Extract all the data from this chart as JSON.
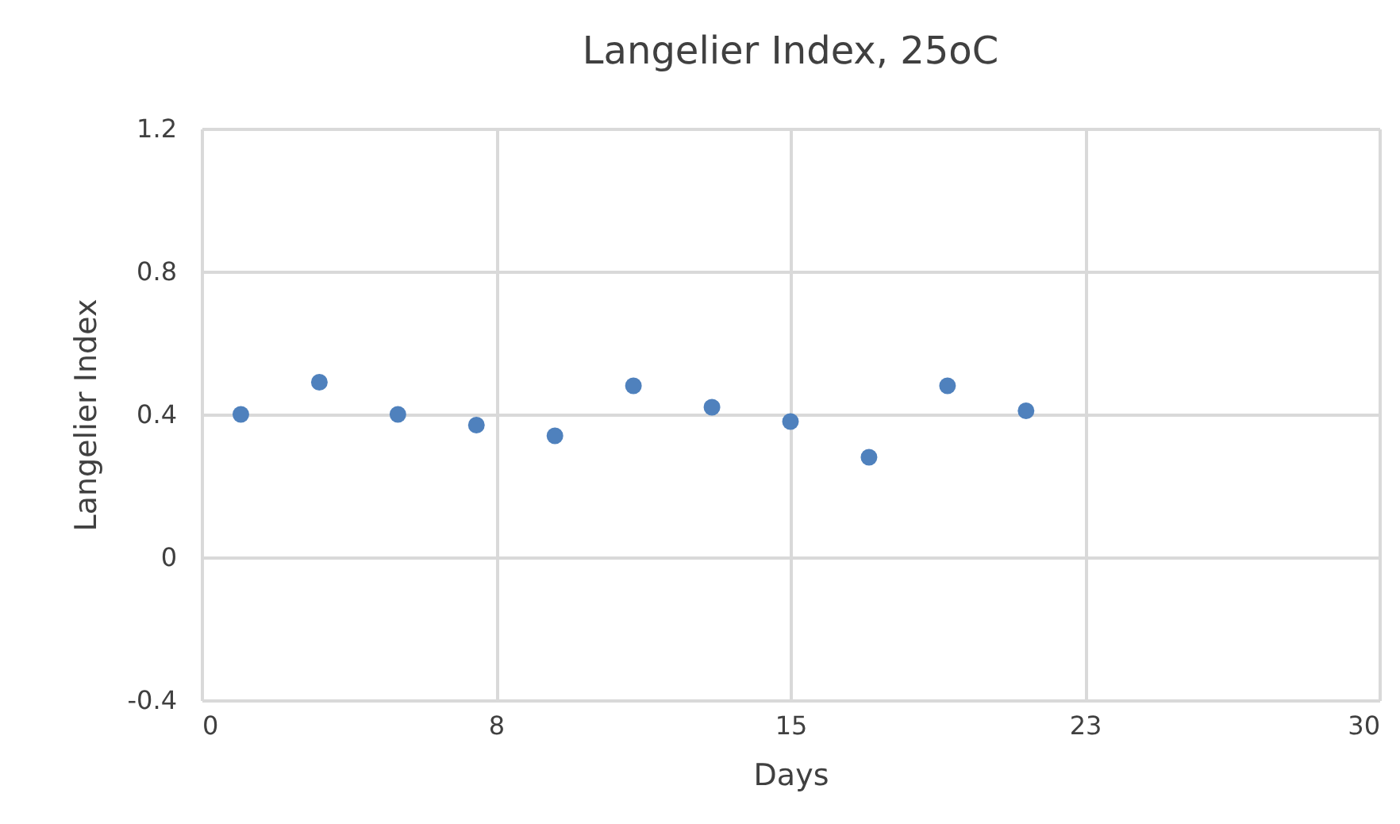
{
  "chart_data": {
    "type": "scatter",
    "title": "Langelier Index, 25oC",
    "xlabel": "Days",
    "ylabel": "Langelier Index",
    "x": [
      1,
      3,
      5,
      7,
      9,
      11,
      13,
      15,
      17,
      19,
      21
    ],
    "series": [
      {
        "color": "#4f81bd",
        "values": [
          0.4,
          0.49,
          0.4,
          0.37,
          0.34,
          0.48,
          0.42,
          0.38,
          0.28,
          0.48,
          0.41
        ]
      }
    ],
    "xlim": [
      0,
      30
    ],
    "xticks": [
      0,
      {
        "value": 7.5,
        "label": "8"
      },
      15,
      {
        "value": 22.5,
        "label": "23"
      },
      30
    ],
    "ylim": [
      -0.4,
      1.2
    ],
    "yticks": [
      -0.4,
      0,
      0.4,
      0.8,
      1.2
    ],
    "grid": true,
    "marker": "circle"
  }
}
